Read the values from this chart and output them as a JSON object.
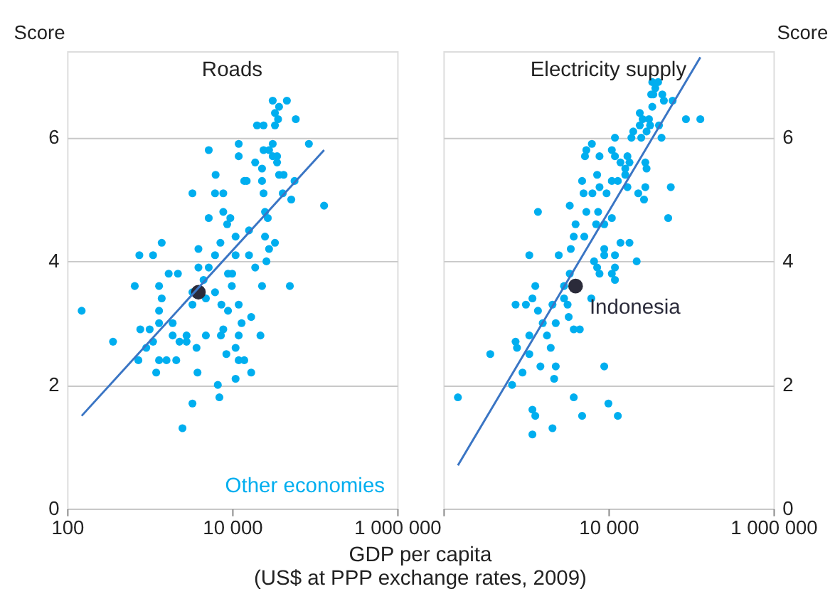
{
  "chart_data": [
    {
      "type": "scatter",
      "title": "Roads",
      "ylabel": "Score",
      "xlabel": "GDP per capita\n(US$ at PPP exchange rates, 2009)",
      "log": "x",
      "grid": "y",
      "marker": "circle",
      "legend": "bottom right",
      "xlim": [
        100,
        1000000
      ],
      "xticks": [
        {
          "value": 100,
          "label": "100"
        },
        {
          "value": 10000,
          "label": "10 000"
        },
        {
          "value": 1000000,
          "label": "1 000 000"
        }
      ],
      "ylim": [
        0,
        7.4
      ],
      "yticks": [
        0,
        2,
        4,
        6
      ],
      "series": [
        {
          "name": "Other economies",
          "color": "#00aeef",
          "x": [
            150,
            360,
            660,
            750,
            1100,
            1400,
            1300,
            1700,
            2200,
            1400,
            1300,
            770,
            1000,
            1900,
            1300,
            1100,
            910,
            730,
            1300,
            1600,
            2100,
            1200,
            1900,
            2300,
            2800,
            2800,
            3700,
            3800,
            4800,
            3300,
            2500,
            6700,
            7000,
            11000,
            8500,
            7300,
            12000,
            7800,
            11000,
            13000,
            17000,
            22000,
            12000,
            14000,
            17000,
            7400,
            8900,
            12000,
            6200,
            4800,
            3300,
            3300,
            3900,
            5200,
            4500,
            8900,
            10000,
            9900,
            23000,
            50000,
            19000,
            26000,
            28000,
            33000,
            25000,
            16000,
            11000,
            6200,
            3900,
            7200,
            11000,
            16000,
            8700,
            9500,
            7800,
            5200,
            25000,
            27000,
            3300,
            6200,
            7800,
            6300,
            5200,
            12000,
            12000,
            14000,
            15000,
            23000,
            19000,
            23000,
            24000,
            41000,
            52000,
            57000,
            130000,
            42000,
            37000,
            35000,
            31000,
            35000,
            28000,
            24000,
            31000,
            85000,
            20000,
            24000,
            33000,
            36000,
            33000,
            31000,
            46000,
            37000,
            59000
          ],
          "values": [
            3.2,
            2.7,
            3.6,
            4.1,
            4.1,
            4.3,
            3.6,
            3.8,
            3.8,
            3.4,
            3.2,
            2.9,
            2.9,
            3.0,
            3.0,
            2.7,
            2.6,
            2.4,
            2.4,
            2.4,
            2.4,
            2.2,
            2.8,
            2.7,
            2.8,
            2.7,
            2.6,
            2.2,
            2.8,
            1.7,
            1.3,
            2.0,
            1.8,
            2.1,
            2.5,
            2.8,
            2.8,
            2.9,
            2.6,
            3.0,
            3.1,
            2.8,
            2.4,
            2.4,
            2.2,
            3.3,
            3.2,
            3.3,
            3.5,
            3.4,
            3.5,
            3.3,
            3.9,
            3.9,
            3.7,
            3.8,
            3.8,
            3.6,
            3.6,
            3.6,
            3.9,
            4.0,
            4.2,
            4.3,
            4.4,
            4.1,
            4.1,
            4.1,
            4.2,
            4.3,
            4.4,
            4.5,
            4.6,
            4.7,
            4.8,
            4.7,
            4.8,
            4.7,
            5.1,
            5.1,
            5.1,
            5.4,
            5.8,
            5.7,
            5.9,
            5.3,
            5.3,
            5.3,
            5.6,
            5.5,
            5.1,
            5.1,
            5.0,
            5.3,
            4.9,
            5.4,
            5.4,
            5.6,
            5.7,
            5.7,
            5.8,
            5.8,
            5.9,
            5.9,
            6.2,
            6.2,
            6.2,
            6.3,
            6.4,
            6.6,
            6.6,
            6.5,
            6.3
          ]
        },
        {
          "color": "#2b2b3a",
          "x": [
            3900
          ],
          "values": [
            3.5
          ]
        },
        {
          "type": "line",
          "marker": "none",
          "color": "#3a75c4",
          "x": [
            150,
            130000
          ],
          "values": [
            1.5,
            5.8
          ]
        }
      ]
    },
    {
      "type": "scatter",
      "title": "Electricity supply",
      "y2label": "Score",
      "log": "x",
      "grid": "y",
      "marker": "circle",
      "xlim": [
        100,
        1000000
      ],
      "xticks": [
        {
          "value": 100,
          "label": null
        },
        {
          "value": 10000,
          "label": "10 000"
        },
        {
          "value": 1000000,
          "label": "1 000 000"
        }
      ],
      "y2lim": [
        0,
        7.4
      ],
      "y2ticks": [
        0,
        2,
        4,
        6
      ],
      "series": [
        {
          "color": "#00aeef",
          "axis": "y2",
          "x": [
            150,
            370,
            680,
            910,
            1200,
            1200,
            1300,
            2100,
            3800,
            4800,
            8900,
            10000,
            13000,
            1500,
            2300,
            2200,
            2000,
            1800,
            1100,
            780,
            750,
            1100,
            1600,
            2300,
            1400,
            750,
            1000,
            1200,
            1300,
            2100,
            2900,
            3200,
            3300,
            4500,
            3800,
            2900,
            3400,
            6200,
            6700,
            7800,
            7300,
            11000,
            12000,
            12000,
            8900,
            12000,
            8900,
            22000,
            14000,
            18000,
            3500,
            1100,
            2500,
            3800,
            5100,
            7100,
            8900,
            11000,
            4000,
            5400,
            7500,
            1400,
            3400,
            53000,
            5000,
            6400,
            9500,
            4800,
            7300,
            7800,
            11000,
            13000,
            17000,
            23000,
            27000,
            28000,
            57000,
            16000,
            16000,
            14000,
            18000,
            28000,
            29000,
            11000,
            12000,
            7800,
            5400,
            5200,
            6300,
            12000,
            17000,
            19000,
            20000,
            25000,
            29000,
            24000,
            32000,
            44000,
            41000,
            24000,
            26000,
            31000,
            87000,
            130000,
            34000,
            47000,
            60000,
            33000,
            37000,
            34000,
            40000,
            45000,
            35000
          ],
          "values": [
            1.8,
            2.5,
            2.0,
            2.2,
            1.2,
            1.6,
            1.5,
            1.3,
            1.8,
            1.5,
            2.3,
            1.7,
            1.5,
            2.3,
            2.3,
            2.1,
            2.6,
            2.8,
            2.5,
            2.6,
            2.7,
            2.8,
            3.0,
            3.0,
            3.2,
            3.3,
            3.3,
            3.4,
            3.6,
            3.3,
            3.4,
            3.3,
            3.1,
            2.9,
            2.9,
            3.6,
            3.8,
            3.4,
            4.0,
            3.8,
            3.9,
            3.8,
            3.7,
            3.9,
            4.1,
            4.1,
            4.2,
            4.0,
            4.3,
            4.3,
            4.2,
            4.1,
            4.1,
            4.4,
            4.4,
            4.6,
            4.6,
            4.7,
            4.6,
            4.8,
            4.8,
            4.8,
            4.9,
            4.7,
            5.1,
            5.1,
            5.1,
            5.3,
            5.4,
            5.2,
            5.3,
            5.3,
            5.2,
            5.1,
            5.0,
            5.2,
            5.2,
            5.4,
            5.5,
            5.6,
            5.6,
            5.6,
            5.5,
            5.8,
            5.7,
            5.7,
            5.8,
            5.7,
            5.9,
            6.0,
            5.7,
            6.0,
            6.1,
            6.0,
            6.1,
            6.2,
            6.2,
            6.0,
            6.2,
            6.4,
            6.3,
            6.3,
            6.3,
            6.3,
            6.5,
            6.6,
            6.6,
            6.7,
            6.8,
            6.9,
            6.9,
            6.7,
            6.7
          ]
        },
        {
          "name": "Indonesia",
          "color": "#2b2b3a",
          "axis": "y2",
          "x": [
            4000
          ],
          "values": [
            3.6
          ]
        },
        {
          "type": "line",
          "marker": "none",
          "color": "#3a75c4",
          "axis": "y2",
          "x": [
            150,
            130000
          ],
          "values": [
            0.7,
            7.3
          ]
        }
      ]
    }
  ]
}
